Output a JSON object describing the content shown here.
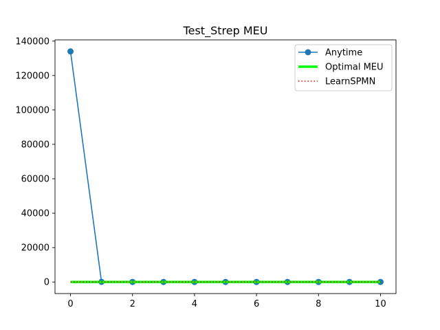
{
  "chart_data": {
    "type": "line",
    "title": "Test_Strep MEU",
    "xlabel": "",
    "ylabel": "",
    "xlim": [
      -0.5,
      10.5
    ],
    "ylim": [
      -6700,
      140700
    ],
    "xticks": [
      0,
      2,
      4,
      6,
      8,
      10
    ],
    "yticks": [
      0,
      20000,
      40000,
      60000,
      80000,
      100000,
      120000,
      140000
    ],
    "grid": false,
    "legend_position": "top-right",
    "series": [
      {
        "name": "Anytime",
        "color": "#1f77b4",
        "style": "solid-with-markers",
        "x": [
          0,
          1,
          2,
          3,
          4,
          5,
          6,
          7,
          8,
          9,
          10
        ],
        "y": [
          134000,
          100,
          50,
          50,
          50,
          50,
          50,
          50,
          50,
          50,
          50
        ]
      },
      {
        "name": "Optimal MEU",
        "color": "#00ff00",
        "style": "thick-solid",
        "x": [
          0,
          10
        ],
        "y": [
          50,
          50
        ]
      },
      {
        "name": "LearnSPMN",
        "color": "#ff0000",
        "style": "dotted",
        "x": [
          0,
          10
        ],
        "y": [
          50,
          50
        ]
      }
    ]
  }
}
